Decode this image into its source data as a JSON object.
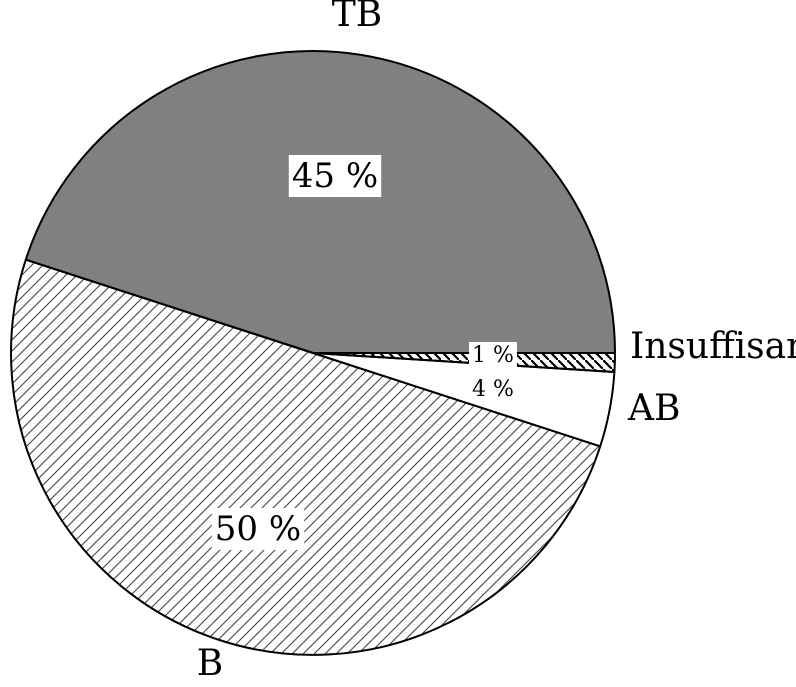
{
  "chart_data": {
    "type": "pie",
    "start_angle_deg": 0,
    "direction": "counterclockwise",
    "slices": [
      {
        "name": "TB",
        "value": 45,
        "value_label": "45 %",
        "fill": "solid",
        "color": "#808080"
      },
      {
        "name": "B",
        "value": 50,
        "value_label": "50 %",
        "fill": "hatch-light",
        "color": "#ffffff"
      },
      {
        "name": "AB",
        "value": 4,
        "value_label": "4 %",
        "fill": "none",
        "color": "#ffffff"
      },
      {
        "name": "Insuffisant",
        "value": 1,
        "value_label": "1 %",
        "fill": "hatch-bold",
        "color": "#ffffff"
      }
    ]
  }
}
